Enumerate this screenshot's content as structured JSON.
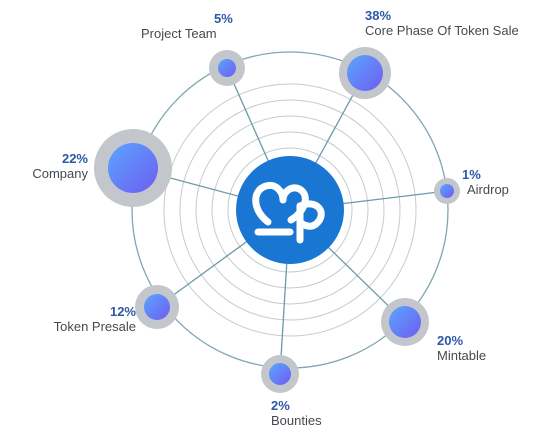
{
  "logo": {
    "text": "P2P",
    "color": "#1976d2"
  },
  "colors": {
    "ring": "#c4ccd2",
    "spoke": "#6a9aa6",
    "outer_ring": "#7fa6b2",
    "halo": "#c3c7cb",
    "node_gradient": [
      "#5aa6ff",
      "#6f5cf0"
    ],
    "percent_text": "#2c58a8",
    "label_text": "#444a50"
  },
  "segments": [
    {
      "id": "project-team",
      "percent": "5%",
      "label": "Project Team",
      "value": 5
    },
    {
      "id": "core-phase",
      "percent": "38%",
      "label": "Core Phase Of Token Sale",
      "value": 38
    },
    {
      "id": "airdrop",
      "percent": "1%",
      "label": "Airdrop",
      "value": 1
    },
    {
      "id": "mintable",
      "percent": "20%",
      "label": "Mintable",
      "value": 20
    },
    {
      "id": "bounties",
      "percent": "2%",
      "label": "Bounties",
      "value": 2
    },
    {
      "id": "token-presale",
      "percent": "12%",
      "label": "Token Presale",
      "value": 12
    },
    {
      "id": "company",
      "percent": "22%",
      "label": "Company",
      "value": 22
    }
  ]
}
